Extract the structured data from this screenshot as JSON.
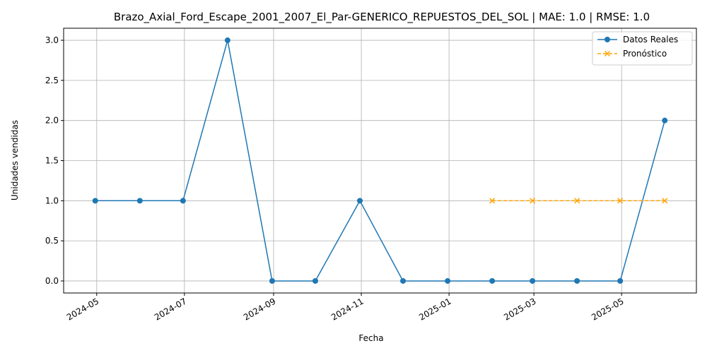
{
  "chart_data": {
    "type": "line",
    "title": "Brazo_Axial_Ford_Escape_2001_2007_El_Par-GENERICO_REPUESTOS_DEL_SOL | MAE: 1.0 | RMSE: 1.0",
    "xlabel": "Fecha",
    "ylabel": "Unidades vendidas",
    "ylim": [
      -0.15,
      3.15
    ],
    "xlim": [
      "2024-04-08",
      "2025-06-22"
    ],
    "grid": true,
    "legend_position": "top-right",
    "x_ticks": [
      "2024-05",
      "2024-07",
      "2024-09",
      "2024-11",
      "2025-01",
      "2025-03",
      "2025-05"
    ],
    "x_tick_dates": [
      "2024-05-01",
      "2024-07-01",
      "2024-09-01",
      "2024-11-01",
      "2025-01-01",
      "2025-03-01",
      "2025-05-01"
    ],
    "y_ticks": [
      0.0,
      0.5,
      1.0,
      1.5,
      2.0,
      2.5,
      3.0
    ],
    "y_tick_labels": [
      "0.0",
      "0.5",
      "1.0",
      "1.5",
      "2.0",
      "2.5",
      "3.0"
    ],
    "series": [
      {
        "name": "Datos Reales",
        "color": "#1f77b4",
        "marker": "circle",
        "line_style": "solid",
        "x": [
          "2024-04-30",
          "2024-05-31",
          "2024-06-30",
          "2024-07-31",
          "2024-08-31",
          "2024-09-30",
          "2024-10-31",
          "2024-11-30",
          "2024-12-31",
          "2025-01-31",
          "2025-02-28",
          "2025-03-31",
          "2025-04-30",
          "2025-05-31"
        ],
        "values": [
          1,
          1,
          1,
          3,
          0,
          0,
          1,
          0,
          0,
          0,
          0,
          0,
          0,
          2
        ]
      },
      {
        "name": "Pronóstico",
        "color": "#ffa500",
        "marker": "x",
        "line_style": "dashed",
        "x": [
          "2025-01-31",
          "2025-02-28",
          "2025-03-31",
          "2025-04-30",
          "2025-05-31"
        ],
        "values": [
          1,
          1,
          1,
          1,
          1
        ]
      }
    ]
  }
}
